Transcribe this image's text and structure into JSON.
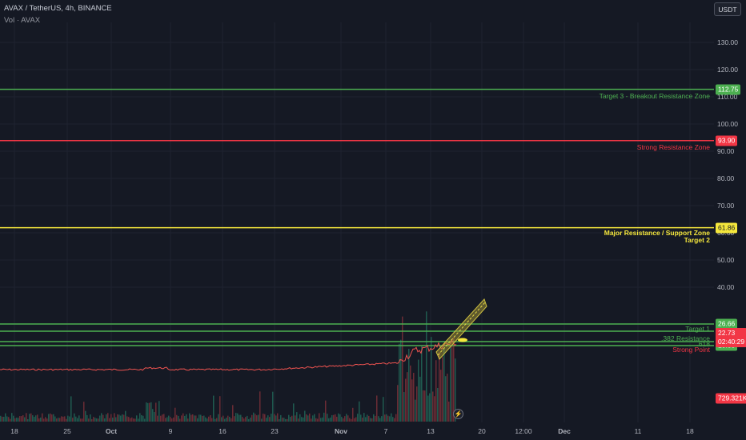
{
  "header": {
    "symbol_line": "AVAX / TetherUS, 4h, BINANCE",
    "volume_line": "Vol · AVAX"
  },
  "currency_button": "USDT",
  "colors": {
    "background": "#151924",
    "grid": "#1f2330",
    "green": "#4caf50",
    "red": "#f23645",
    "yellow": "#f5e73c",
    "volume_green": "#1f5a4f",
    "volume_red": "#6b2c35"
  },
  "price_axis": {
    "ticks": [
      "130.00",
      "120.00",
      "110.00",
      "100.00",
      "90.00",
      "80.00",
      "70.00",
      "60.00",
      "50.00",
      "40.00"
    ]
  },
  "time_axis": {
    "labels": [
      "18",
      "25",
      "Oct",
      "9",
      "16",
      "23",
      "Nov",
      "7",
      "13",
      "20",
      "12:00",
      "Dec",
      "11",
      "18"
    ]
  },
  "levels": [
    {
      "price": "112.75",
      "label": "Target 3 - Breakout Resistance Zone",
      "color": "green"
    },
    {
      "price": "93.90",
      "label": "Strong Resistance Zone",
      "color": "red"
    },
    {
      "price": "61.86",
      "label": "Major Resistance / Support Zone",
      "label2": "Target 2",
      "color": "yellow"
    },
    {
      "price": "26.66",
      "color": "green"
    },
    {
      "price": "24.11",
      "label": "Target 1",
      "color": "green"
    },
    {
      "price": "20.43",
      "label": ".382 Resistance",
      "color": "green"
    },
    {
      "price": "18.58",
      "label": ".618",
      "label2": "Strong Point",
      "color": "green"
    }
  ],
  "current_price": {
    "value": "22.73",
    "countdown": "02:40:29"
  },
  "volume_tag": "729.321K",
  "flash_icon": "lightning-icon"
}
